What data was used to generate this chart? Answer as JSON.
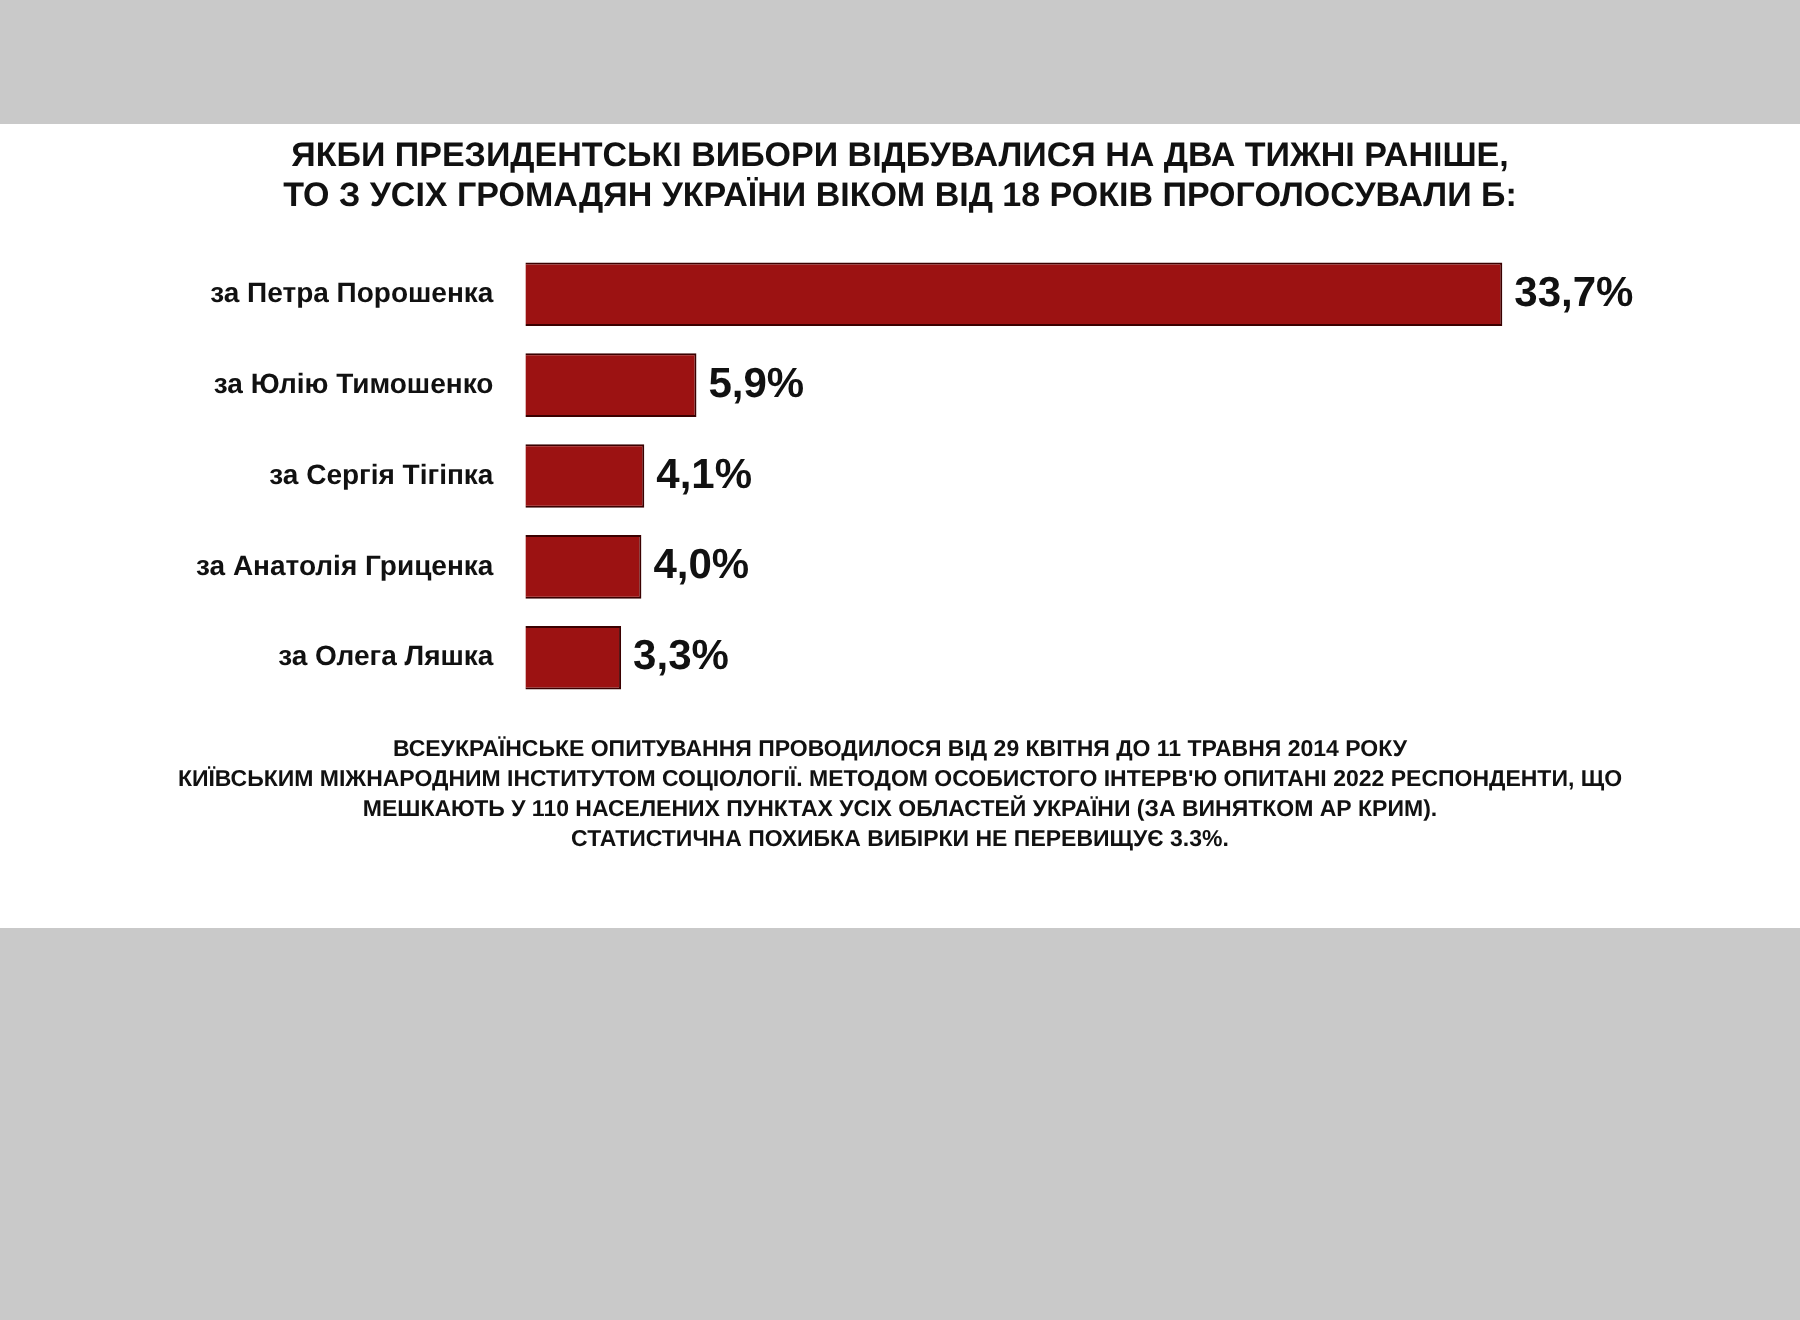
{
  "chart_data": {
    "type": "bar",
    "orientation": "horizontal",
    "title": "ЯКБИ ПРЕЗИДЕНТСЬКІ ВИБОРИ ВІДБУВАЛИСЯ НА ДВА ТИЖНІ РАНІШЕ,\nТО З УСІХ ГРОМАДЯН УКРАЇНИ ВІКОМ ВІД 18 РОКІВ ПРОГОЛОСУВАЛИ Б:",
    "categories": [
      "за Петра Порошенка",
      "за Юлію Тимошенко",
      "за Сергія Тігіпка",
      "за Анатолія Гриценка",
      "за Олега Ляшка"
    ],
    "values": [
      33.7,
      5.9,
      4.1,
      4.0,
      3.3
    ],
    "value_labels": [
      "33,7%",
      "5,9%",
      "4,1%",
      "4,0%",
      "3,3%"
    ],
    "color": "#9c1212",
    "tick_labels": "y",
    "legend": false,
    "annotations": [
      "ВСЕУКРАЇНСЬКЕ ОПИТУВАННЯ ПРОВОДИЛОСЯ ВІД 29 КВІТНЯ ДО 11 ТРАВНЯ 2014 РОКУ",
      "КИЇВСЬКИМ МІЖНАРОДНИМ ІНСТИТУТОМ СОЦІОЛОГІЇ. МЕТОДОМ ОСОБИСТОГО ІНТЕРВ'Ю ОПИТАНІ 2022 РЕСПОНДЕНТИ, ЩО",
      "МЕШКАЮТЬ У 110 НАСЕЛЕНИХ ПУНКТАХ УСІХ ОБЛАСТЕЙ УКРАЇНИ (ЗА ВИНЯТКОМ АР КРИМ).",
      "СТАТИСТИЧНА ПОХИБКА ВИБІРКИ НЕ ПЕРЕВИЩУЄ 3.3%."
    ]
  }
}
